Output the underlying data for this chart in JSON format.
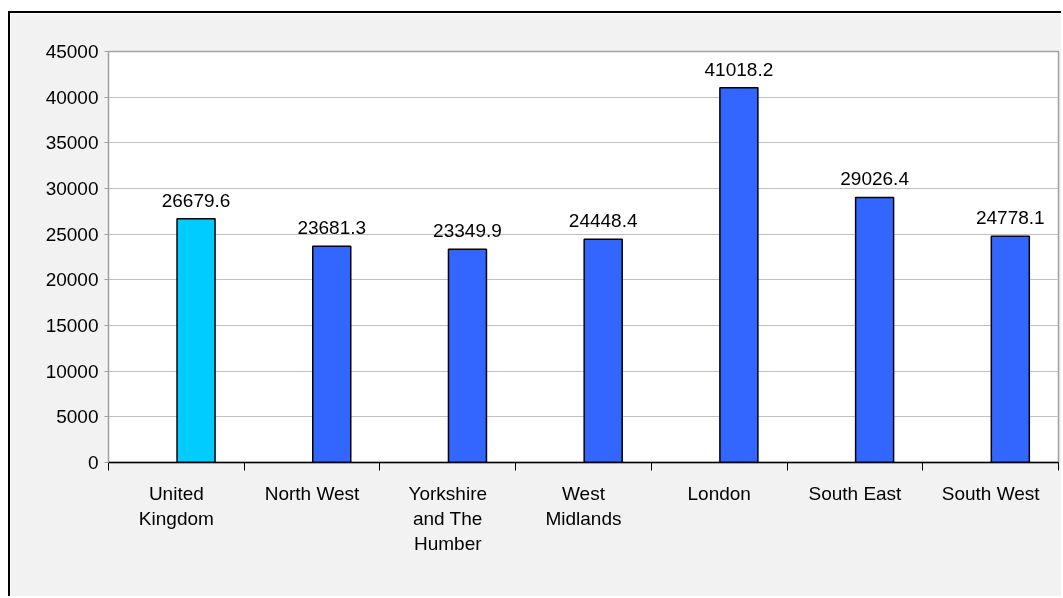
{
  "chart_data": {
    "type": "bar",
    "categories": [
      "United Kingdom",
      "North West",
      "Yorkshire and The Humber",
      "West Midlands",
      "London",
      "South East",
      "South West"
    ],
    "values": [
      26679.6,
      23681.3,
      23349.9,
      24448.4,
      41018.2,
      29026.4,
      24778.1
    ],
    "colors": [
      "#00ccff",
      "#3366ff",
      "#3366ff",
      "#3366ff",
      "#3366ff",
      "#3366ff",
      "#3366ff"
    ],
    "ylim": [
      0,
      45000
    ],
    "yticks": [
      0,
      5000,
      10000,
      15000,
      20000,
      25000,
      30000,
      35000,
      40000,
      45000
    ],
    "grid": "y",
    "data_labels": true
  }
}
